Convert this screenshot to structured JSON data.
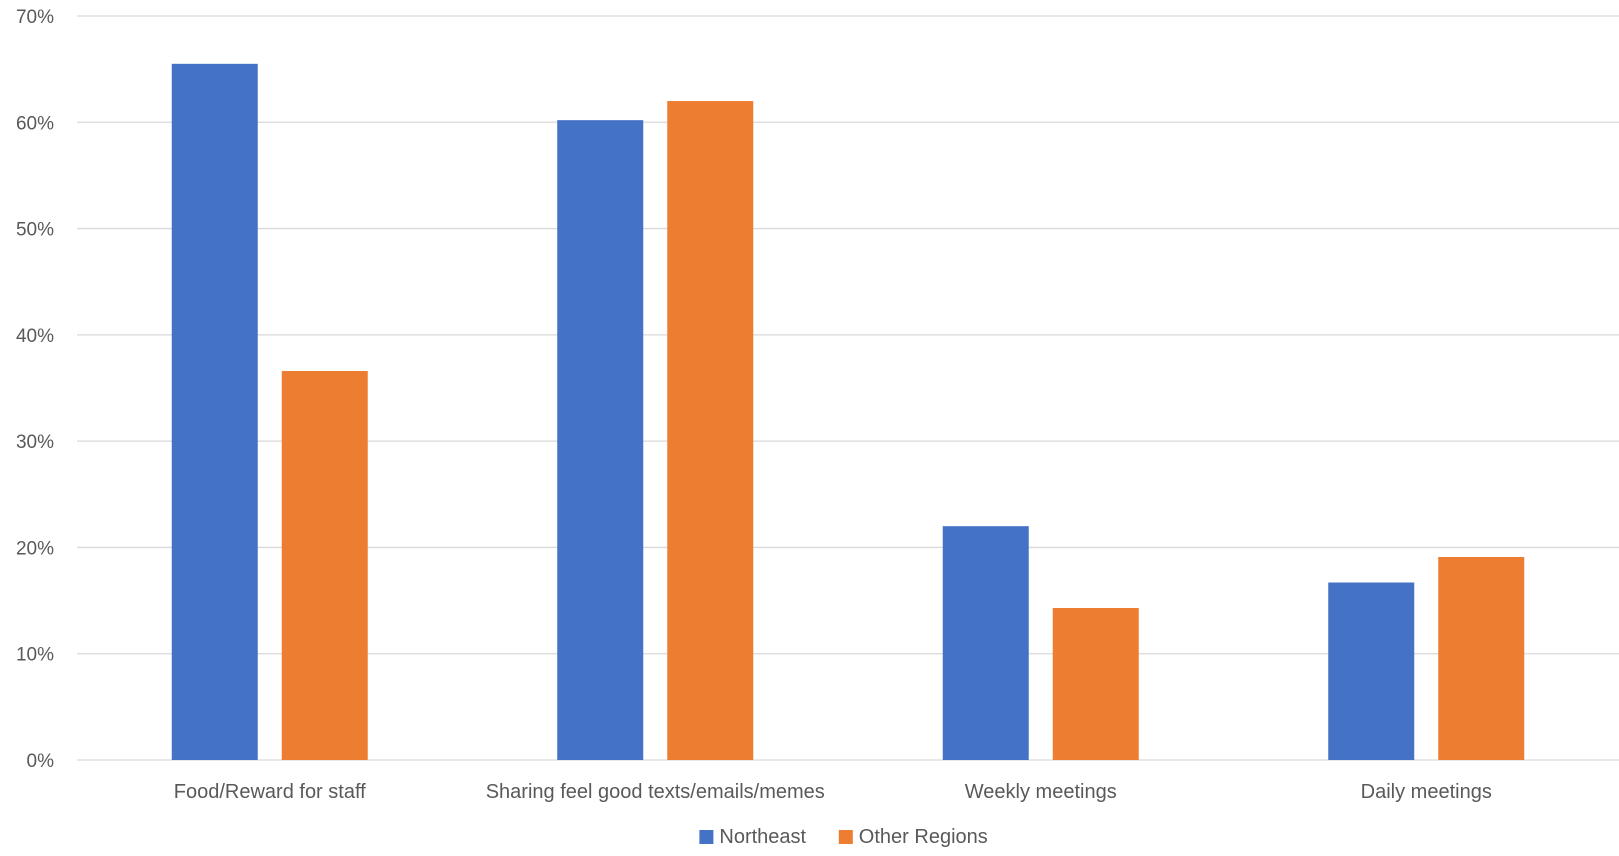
{
  "chart_data": {
    "type": "bar",
    "title": "",
    "xlabel": "",
    "ylabel": "",
    "ylim": [
      0,
      70
    ],
    "yticks": [
      0,
      10,
      20,
      30,
      40,
      50,
      60,
      70
    ],
    "ytick_labels": [
      "0%",
      "10%",
      "20%",
      "30%",
      "40%",
      "50%",
      "60%",
      "70%"
    ],
    "grid": true,
    "legend_position": "bottom-center",
    "categories": [
      "Food/Reward for staff",
      "Sharing feel good texts/emails/memes",
      "Weekly meetings",
      "Daily meetings"
    ],
    "series": [
      {
        "name": "Northeast",
        "color": "#4472C4",
        "values": [
          65.5,
          60.2,
          22.0,
          16.7
        ]
      },
      {
        "name": "Other Regions",
        "color": "#ED7D31",
        "values": [
          36.6,
          62.0,
          14.3,
          19.1
        ]
      }
    ]
  }
}
